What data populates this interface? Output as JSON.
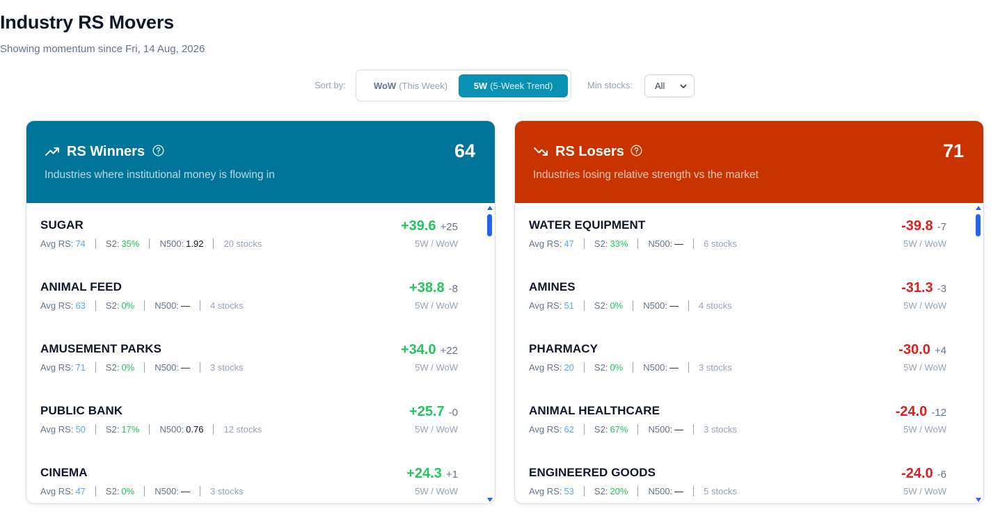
{
  "page": {
    "title": "Industry RS Movers",
    "subtitle": "Showing momentum since Fri, 14 Aug, 2026"
  },
  "controls": {
    "sort_label": "Sort by:",
    "sort_options": [
      {
        "label": "WoW",
        "detail": "(This Week)",
        "selected": false
      },
      {
        "label": "5W",
        "detail": "(5-Week Trend)",
        "selected": true
      }
    ],
    "min_stocks_label": "Min stocks:",
    "min_stocks_value": "All"
  },
  "winners": {
    "title": "RS Winners",
    "subtitle": "Industries where institutional money is flowing in",
    "count": "64",
    "icon": "trending-up-icon",
    "color": "#007599",
    "rows": [
      {
        "name": "SUGAR",
        "avg_rs": "74",
        "s2": "35%",
        "n500": "1.92",
        "stocks": "20 stocks",
        "value": "+39.6",
        "wow": "+25",
        "unit": "5W / WoW"
      },
      {
        "name": "ANIMAL FEED",
        "avg_rs": "63",
        "s2": "0%",
        "n500": "—",
        "stocks": "4 stocks",
        "value": "+38.8",
        "wow": "-8",
        "unit": "5W / WoW"
      },
      {
        "name": "AMUSEMENT PARKS",
        "avg_rs": "71",
        "s2": "0%",
        "n500": "—",
        "stocks": "3 stocks",
        "value": "+34.0",
        "wow": "+22",
        "unit": "5W / WoW"
      },
      {
        "name": "PUBLIC BANK",
        "avg_rs": "50",
        "s2": "17%",
        "n500": "0.76",
        "stocks": "12 stocks",
        "value": "+25.7",
        "wow": "-0",
        "unit": "5W / WoW"
      },
      {
        "name": "CINEMA",
        "avg_rs": "47",
        "s2": "0%",
        "n500": "—",
        "stocks": "3 stocks",
        "value": "+24.3",
        "wow": "+1",
        "unit": "5W / WoW"
      }
    ]
  },
  "losers": {
    "title": "RS Losers",
    "subtitle": "Industries losing relative strength vs the market",
    "count": "71",
    "icon": "trending-down-icon",
    "color": "#c93300",
    "rows": [
      {
        "name": "WATER EQUIPMENT",
        "avg_rs": "47",
        "s2": "33%",
        "n500": "—",
        "stocks": "6 stocks",
        "value": "-39.8",
        "wow": "-7",
        "unit": "5W / WoW"
      },
      {
        "name": "AMINES",
        "avg_rs": "51",
        "s2": "0%",
        "n500": "—",
        "stocks": "4 stocks",
        "value": "-31.3",
        "wow": "-3",
        "unit": "5W / WoW"
      },
      {
        "name": "PHARMACY",
        "avg_rs": "20",
        "s2": "0%",
        "n500": "—",
        "stocks": "3 stocks",
        "value": "-30.0",
        "wow": "+4",
        "unit": "5W / WoW"
      },
      {
        "name": "ANIMAL HEALTHCARE",
        "avg_rs": "62",
        "s2": "67%",
        "n500": "—",
        "stocks": "3 stocks",
        "value": "-24.0",
        "wow": "-12",
        "unit": "5W / WoW"
      },
      {
        "name": "ENGINEERED GOODS",
        "avg_rs": "53",
        "s2": "20%",
        "n500": "—",
        "stocks": "5 stocks",
        "value": "-24.0",
        "wow": "-6",
        "unit": "5W / WoW"
      }
    ]
  },
  "meta_labels": {
    "avg_rs": "Avg RS:",
    "s2": "S2:",
    "n500": "N500:"
  }
}
